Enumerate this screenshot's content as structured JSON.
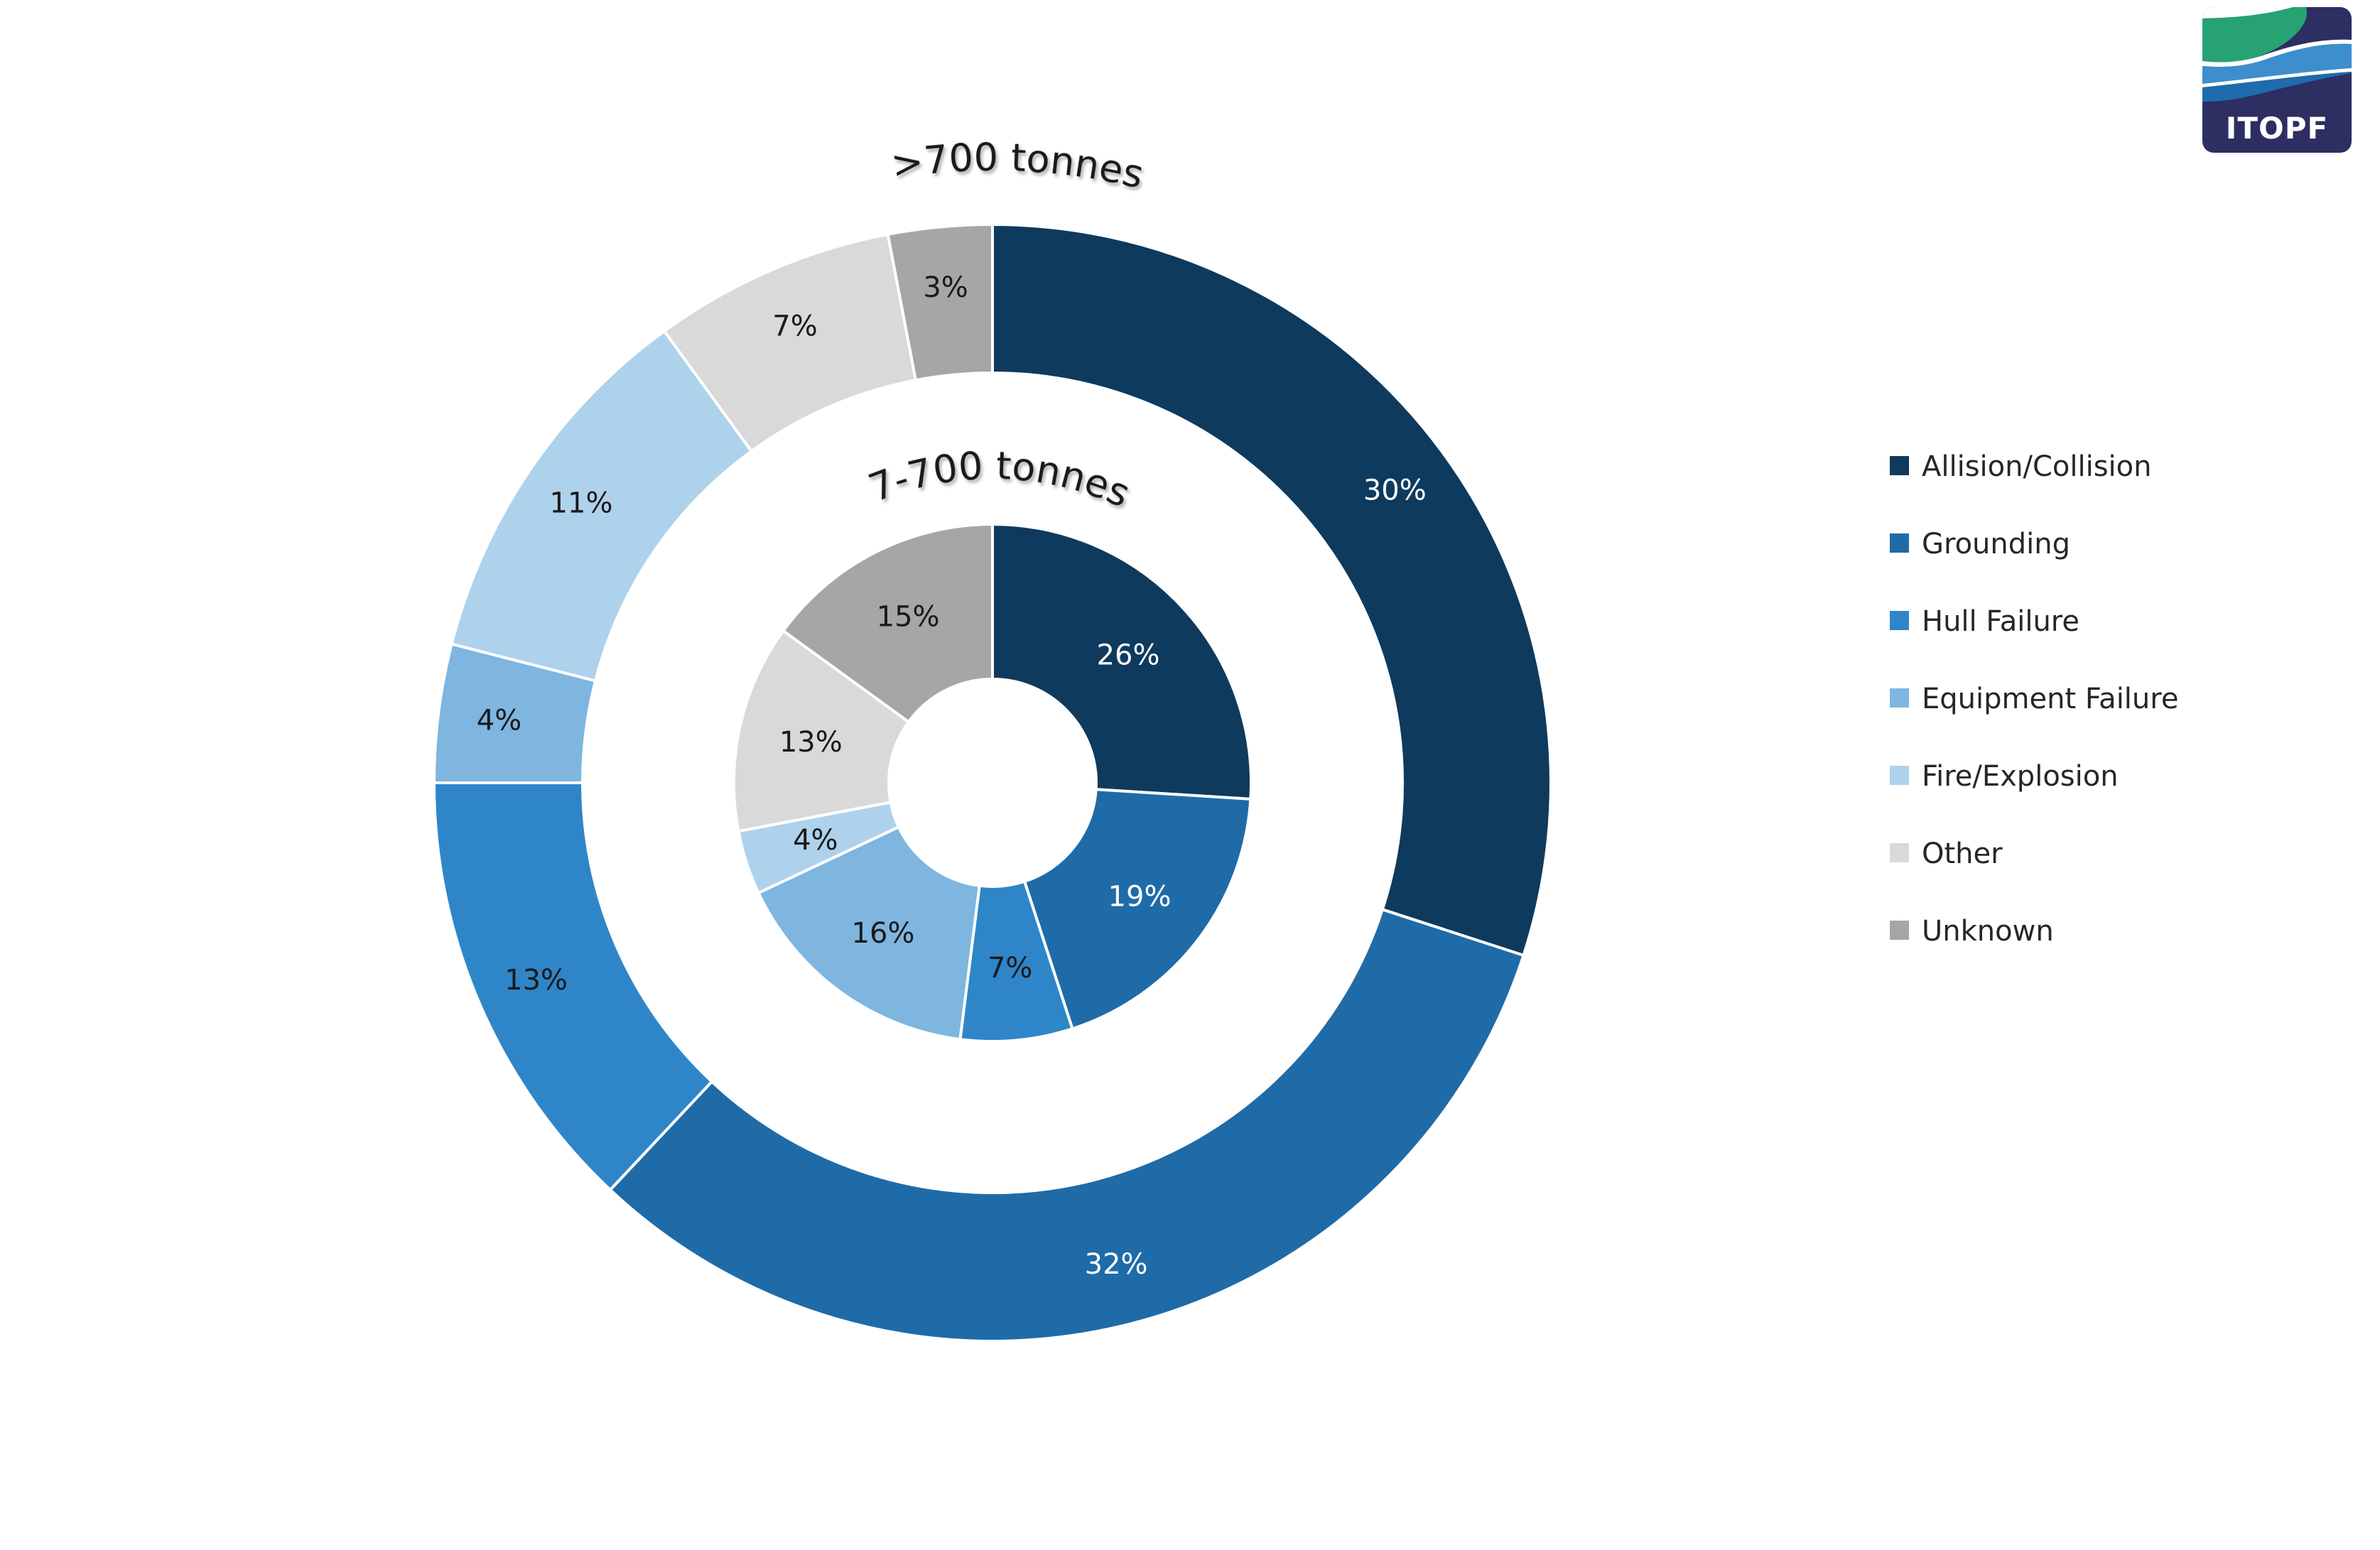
{
  "page": {
    "background": "#ffffff"
  },
  "logo": {
    "text": "ITOPF",
    "navy": "#2d2e62",
    "green": "#27a273",
    "blue": "#3c8ecd",
    "dark_blue": "#1e6bad"
  },
  "chart_data": {
    "type": "donut",
    "title_outer": ">700 tonnes",
    "title_inner": "7-700 tonnes",
    "legend_position": "right",
    "categories": [
      "Allision/Collision",
      "Grounding",
      "Hull Failure",
      "Equipment Failure",
      "Fire/Explosion",
      "Other",
      "Unknown"
    ],
    "colors": [
      "#0e3a5e",
      "#1f6ba8",
      "#2e86c9",
      "#7eb6e0",
      "#aed2ec",
      "#d9d9d9",
      "#a6a6a6"
    ],
    "label_colors": [
      "#ffffff",
      "#ffffff",
      "#1a1a1a",
      "#1a1a1a",
      "#1a1a1a",
      "#1a1a1a",
      "#1a1a1a"
    ],
    "series": [
      {
        "name": ">700 tonnes",
        "ring": "outer",
        "values": [
          30,
          32,
          13,
          4,
          11,
          7,
          3
        ],
        "labels": [
          "30%",
          "32%",
          "13%",
          "4%",
          "11%",
          "7%",
          "3%"
        ]
      },
      {
        "name": "7-700 tonnes",
        "ring": "inner",
        "values": [
          26,
          19,
          7,
          16,
          4,
          13,
          15
        ],
        "labels": [
          "26%",
          "19%",
          "7%",
          "16%",
          "4%",
          "13%",
          "15%"
        ]
      }
    ]
  }
}
